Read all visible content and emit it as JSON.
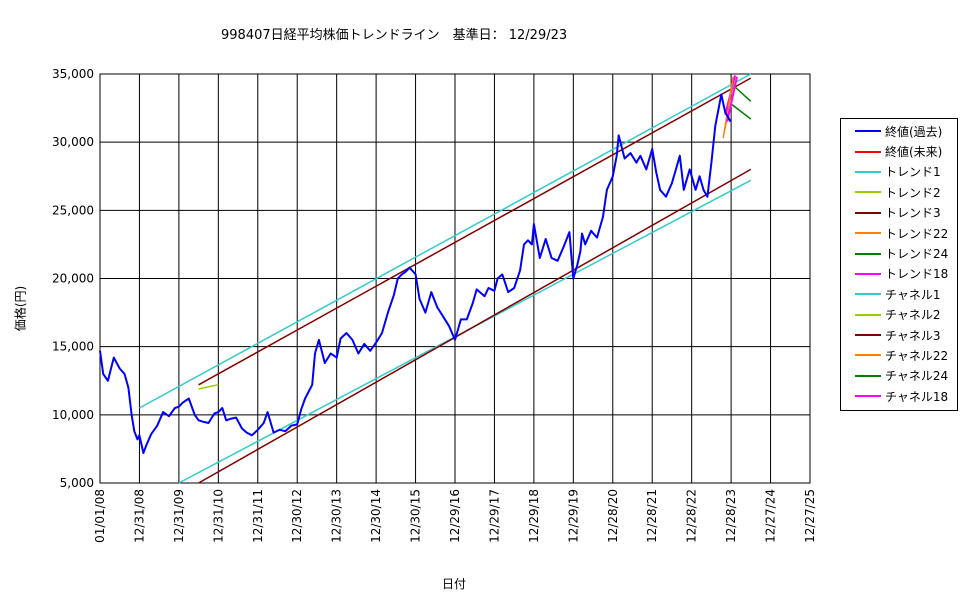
{
  "chart_data": {
    "type": "line",
    "title": "998407日経平均株価トレンドライン　基準日：  12/29/23",
    "xlabel": "日付",
    "ylabel": "価格(円)",
    "ylim": [
      5000,
      35000
    ],
    "yticks": [
      "5,000",
      "10,000",
      "15,000",
      "20,000",
      "25,000",
      "30,000",
      "35,000"
    ],
    "xticks": [
      "01/01/08",
      "12/31/08",
      "12/31/09",
      "12/31/10",
      "12/31/11",
      "12/30/12",
      "12/30/13",
      "12/30/14",
      "12/30/15",
      "12/29/16",
      "12/29/17",
      "12/29/18",
      "12/29/19",
      "12/28/20",
      "12/28/21",
      "12/28/22",
      "12/28/23",
      "12/27/24",
      "12/27/25"
    ],
    "xlim": [
      2008.0,
      2026.0
    ],
    "grid": true,
    "legend_position": "right",
    "series": [
      {
        "name": "終値(過去)",
        "color": "#0000ff",
        "width": 2,
        "x": [
          2008.0,
          2008.08,
          2008.2,
          2008.35,
          2008.5,
          2008.62,
          2008.72,
          2008.8,
          2008.87,
          2008.95,
          2009.0,
          2009.1,
          2009.18,
          2009.3,
          2009.45,
          2009.6,
          2009.75,
          2009.9,
          2010.0,
          2010.1,
          2010.25,
          2010.4,
          2010.5,
          2010.6,
          2010.75,
          2010.9,
          2011.0,
          2011.1,
          2011.2,
          2011.3,
          2011.45,
          2011.6,
          2011.72,
          2011.85,
          2012.0,
          2012.15,
          2012.25,
          2012.4,
          2012.55,
          2012.7,
          2012.85,
          2013.0,
          2013.1,
          2013.2,
          2013.38,
          2013.45,
          2013.55,
          2013.7,
          2013.85,
          2014.0,
          2014.1,
          2014.25,
          2014.4,
          2014.55,
          2014.7,
          2014.85,
          2015.0,
          2015.15,
          2015.3,
          2015.45,
          2015.55,
          2015.65,
          2015.75,
          2015.85,
          2016.0,
          2016.1,
          2016.25,
          2016.4,
          2016.55,
          2016.7,
          2016.85,
          2017.0,
          2017.15,
          2017.3,
          2017.45,
          2017.55,
          2017.75,
          2017.85,
          2018.0,
          2018.08,
          2018.2,
          2018.35,
          2018.5,
          2018.65,
          2018.75,
          2018.85,
          2018.95,
          2019.0,
          2019.15,
          2019.3,
          2019.45,
          2019.6,
          2019.75,
          2019.9,
          2020.0,
          2020.1,
          2020.18,
          2020.22,
          2020.3,
          2020.45,
          2020.6,
          2020.75,
          2020.85,
          2021.0,
          2021.1,
          2021.15,
          2021.3,
          2021.45,
          2021.6,
          2021.7,
          2021.85,
          2022.0,
          2022.1,
          2022.2,
          2022.35,
          2022.5,
          2022.6,
          2022.7,
          2022.8,
          2022.95,
          2023.0,
          2023.1,
          2023.2,
          2023.3,
          2023.4,
          2023.5,
          2023.6,
          2023.75,
          2023.85,
          2023.99
        ],
        "y": [
          14700,
          13000,
          12500,
          14200,
          13400,
          13000,
          12000,
          10000,
          8800,
          8200,
          8500,
          7200,
          7800,
          8600,
          9200,
          10200,
          9900,
          10500,
          10600,
          10900,
          11200,
          10000,
          9600,
          9500,
          9400,
          10100,
          10200,
          10500,
          9600,
          9700,
          9800,
          9000,
          8700,
          8500,
          8900,
          9400,
          10200,
          8700,
          8900,
          8800,
          9200,
          9300,
          10400,
          11200,
          12200,
          14500,
          15500,
          13800,
          14500,
          14200,
          15600,
          16000,
          15500,
          14500,
          15200,
          14700,
          15300,
          16000,
          17500,
          18800,
          20000,
          20300,
          20500,
          20800,
          20300,
          18500,
          17500,
          19000,
          17900,
          17200,
          16500,
          15500,
          17000,
          17000,
          18200,
          19200,
          18700,
          19300,
          19100,
          20000,
          20300,
          19000,
          19300,
          20600,
          22500,
          22800,
          22500,
          24000,
          21500,
          22900,
          21500,
          21300,
          22300,
          23400,
          20000,
          21000,
          22000,
          23300,
          22500,
          23500,
          23000,
          24500,
          26500,
          27500,
          29000,
          30500,
          28800,
          29200,
          28500,
          29000,
          28000,
          29500,
          27800,
          26500,
          26000,
          27000,
          28000,
          29000,
          26500,
          28000,
          27500,
          26500,
          27500,
          26500,
          26000,
          28500,
          31200,
          33500,
          32200,
          31500
        ]
      },
      {
        "name": "終値(未来)",
        "color": "#ff0000",
        "width": 1,
        "x": [],
        "y": []
      },
      {
        "name": "トレンド1",
        "color": "#33cccc",
        "width": 1.5,
        "x": [
          2009.0,
          2024.5
        ],
        "y": [
          10500,
          35000
        ]
      },
      {
        "name": "トレンド2",
        "color": "#99cc00",
        "width": 1.5,
        "x": [
          2010.5,
          2011.0
        ],
        "y": [
          11900,
          12200
        ]
      },
      {
        "name": "トレンド3",
        "color": "#800000",
        "width": 1.5,
        "x": [
          2010.5,
          2024.5
        ],
        "y": [
          12200,
          34700
        ]
      },
      {
        "name": "トレンド22",
        "color": "#ff8000",
        "width": 1.5,
        "x": [
          2023.8,
          2024.05
        ],
        "y": [
          30300,
          34700
        ]
      },
      {
        "name": "トレンド24",
        "color": "#008000",
        "width": 1.5,
        "x": [
          2024.0,
          2024.5
        ],
        "y": [
          34300,
          33000
        ]
      },
      {
        "name": "トレンド18",
        "color": "#ff00ff",
        "width": 2,
        "x": [
          2023.85,
          2024.1
        ],
        "y": [
          32000,
          34900
        ]
      },
      {
        "name": "チャネル1",
        "color": "#33cccc",
        "width": 1.5,
        "x": [
          2010.0,
          2024.5
        ],
        "y": [
          4800,
          27200
        ]
      },
      {
        "name": "チャネル2",
        "color": "#99cc00",
        "width": 1.5,
        "x": [
          2023.95,
          2024.1
        ],
        "y": [
          32200,
          34500
        ]
      },
      {
        "name": "チャネル3",
        "color": "#800000",
        "width": 1.5,
        "x": [
          2010.5,
          2024.5
        ],
        "y": [
          5000,
          28000
        ]
      },
      {
        "name": "チャネル22",
        "color": "#ff8000",
        "width": 1.5,
        "x": [
          2023.85,
          2024.05
        ],
        "y": [
          31000,
          34800
        ]
      },
      {
        "name": "チャネル24",
        "color": "#008000",
        "width": 1.5,
        "x": [
          2024.0,
          2024.5
        ],
        "y": [
          32800,
          31700
        ]
      },
      {
        "name": "チャネル18",
        "color": "#ff00ff",
        "width": 2,
        "x": [
          2023.9,
          2024.15
        ],
        "y": [
          31500,
          34800
        ]
      }
    ]
  }
}
